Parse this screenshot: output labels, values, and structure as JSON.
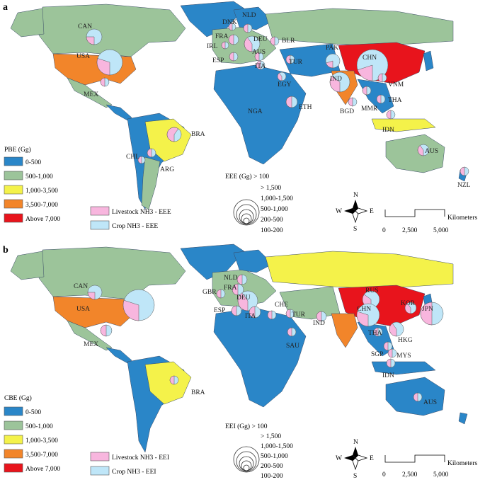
{
  "colors": {
    "c0_500": "#2a86c8",
    "c500_1000": "#9cc49a",
    "c1000_3500": "#f4f24a",
    "c3500_7000": "#f2852a",
    "above7000": "#e8141c",
    "livestock": "#f8b6de",
    "crop": "#bfe6f8"
  },
  "panel_a": {
    "tag": "a",
    "legend_title": "PBE (Gg)",
    "classes": [
      "0-500",
      "500-1,000",
      "1,000-3,500",
      "3,500-7,000",
      "Above 7,000"
    ],
    "pie_legend_livestock": "Livestock NH3 - EEE",
    "pie_legend_crop": "Crop NH3 - EEE",
    "size_title": "EEE (Gg) > 100",
    "size_classes": [
      "> 1,500",
      "1,000-1,500",
      "500-1,000",
      "200-500",
      "100-200"
    ],
    "countries": [
      "CAN",
      "USA",
      "MEX",
      "BRA",
      "CHL",
      "ARG",
      "DNK",
      "NLD",
      "FRA",
      "IRL",
      "ESP",
      "DEU",
      "BLR",
      "AUS",
      "ITA",
      "TUR",
      "EGY",
      "NGA",
      "ETH",
      "PAK",
      "CHN",
      "IND",
      "BGD",
      "MMR",
      "VNM",
      "THA",
      "IDN",
      "AUS",
      "NZL"
    ]
  },
  "panel_b": {
    "tag": "b",
    "legend_title": "CBE (Gg)",
    "classes": [
      "0-500",
      "500-1,000",
      "1,000-3,500",
      "3,500-7,000",
      "Above 7,000"
    ],
    "pie_legend_livestock": "Livestock NH3 - EEI",
    "pie_legend_crop": "Crop NH3 - EEI",
    "size_title": "EEI (Gg) > 100",
    "size_classes": [
      "> 1,500",
      "1,000-1,500",
      "500-1,000",
      "200-500",
      "100-200"
    ],
    "countries": [
      "CAN",
      "USA",
      "MEX",
      "BRA",
      "NLD",
      "FRA",
      "GBR",
      "DEU",
      "ESP",
      "ITA",
      "CHE",
      "TUR",
      "SAU",
      "IND",
      "RUS",
      "CHN",
      "KOR",
      "JPN",
      "THA",
      "HKG",
      "SGP",
      "MYS",
      "IDN",
      "AUS"
    ]
  },
  "compass": {
    "n": "N",
    "s": "S",
    "e": "E",
    "w": "W"
  },
  "scale": {
    "unit": "Kilometers",
    "ticks": [
      "0",
      "2,500",
      "5,000"
    ]
  }
}
